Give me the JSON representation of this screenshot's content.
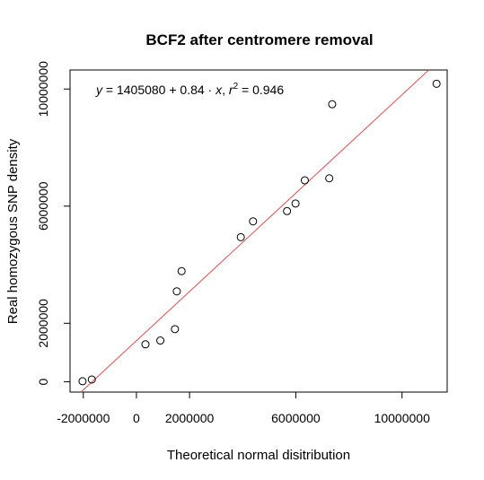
{
  "chart_data": {
    "type": "scatter",
    "title": "BCF2 after centromere removal",
    "xlabel": "Theoretical normal disitribution",
    "ylabel": "Real homozygous SNP density",
    "xlim": [
      -2500000,
      11700000
    ],
    "ylim": [
      -350000,
      10650000
    ],
    "x_ticks": [
      {
        "value": -2000000,
        "label": "-2000000"
      },
      {
        "value": 0,
        "label": "0"
      },
      {
        "value": 2000000,
        "label": "2000000"
      },
      {
        "value": 6000000,
        "label": "6000000"
      },
      {
        "value": 10000000,
        "label": "10000000"
      }
    ],
    "y_ticks": [
      {
        "value": 0,
        "label": "0"
      },
      {
        "value": 2000000,
        "label": "2000000"
      },
      {
        "value": 6000000,
        "label": "6000000"
      },
      {
        "value": 10000000,
        "label": "10000000"
      }
    ],
    "points": [
      {
        "x": -2030000,
        "y": 20000
      },
      {
        "x": -1680000,
        "y": 80000
      },
      {
        "x": 340000,
        "y": 1280000
      },
      {
        "x": 900000,
        "y": 1410000
      },
      {
        "x": 1450000,
        "y": 1800000
      },
      {
        "x": 1520000,
        "y": 3090000
      },
      {
        "x": 1700000,
        "y": 3780000
      },
      {
        "x": 3930000,
        "y": 4940000
      },
      {
        "x": 4390000,
        "y": 5480000
      },
      {
        "x": 5670000,
        "y": 5830000
      },
      {
        "x": 5990000,
        "y": 6090000
      },
      {
        "x": 6340000,
        "y": 6880000
      },
      {
        "x": 7260000,
        "y": 6950000
      },
      {
        "x": 7370000,
        "y": 9480000
      },
      {
        "x": 11300000,
        "y": 10180000
      }
    ],
    "fit_line": {
      "intercept": 1405080,
      "slope": 0.84,
      "color": "#e05050"
    },
    "annotation": {
      "y_lhs": "y",
      "eq_mid": " = 1405080 + 0.84 · ",
      "x_term": "x",
      "sep": ",  ",
      "r_term": "r",
      "r_exp": "2",
      "r_val": " = 0.946"
    },
    "grid": false,
    "legend": "none"
  }
}
